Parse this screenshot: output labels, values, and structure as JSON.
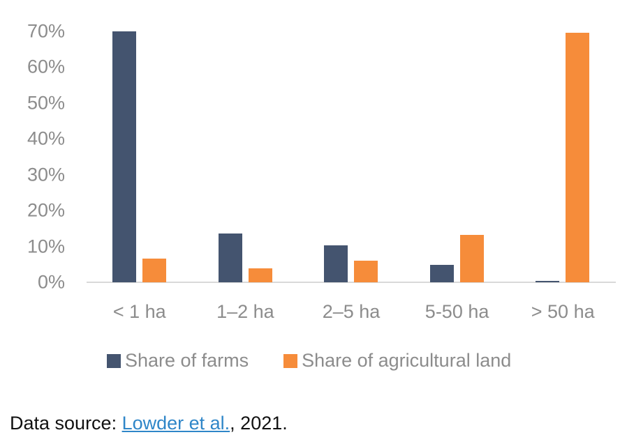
{
  "chart_data": {
    "type": "bar",
    "title": "",
    "xlabel": "",
    "ylabel": "",
    "categories": [
      "< 1 ha",
      "1–2 ha",
      "2–5 ha",
      "5-50 ha",
      "> 50 ha"
    ],
    "series": [
      {
        "name": "Share of farms",
        "color": "#44546f",
        "values": [
          70,
          13.6,
          10.3,
          4.9,
          0.4
        ]
      },
      {
        "name": "Share of agricultural land",
        "color": "#f68c3a",
        "values": [
          6.6,
          3.9,
          6.0,
          13.2,
          69.6
        ]
      }
    ],
    "ylim": [
      0,
      70
    ],
    "yticks": [
      "0%",
      "10%",
      "20%",
      "30%",
      "40%",
      "50%",
      "60%",
      "70%"
    ],
    "grid": false,
    "legend_position": "bottom"
  },
  "source": {
    "prefix": "Data source: ",
    "link_text": "Lowder et al.",
    "suffix": ", 2021."
  }
}
